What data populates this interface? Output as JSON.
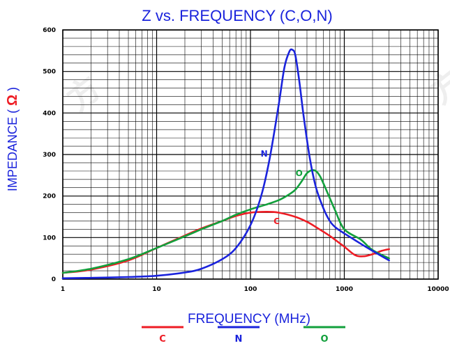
{
  "chart_data": {
    "type": "line",
    "title": "Z vs. FREQUENCY (C,O,N)",
    "xlabel": "FREQUENCY (MHz)",
    "ylabel": "IMPEDANCE",
    "ylabel_unit": "Ω",
    "x_scale": "log",
    "xlim": [
      1,
      10000
    ],
    "ylim": [
      0,
      600
    ],
    "grid": true,
    "x_ticks": [
      {
        "value": 1,
        "label": "1"
      },
      {
        "value": 10,
        "label": "10"
      },
      {
        "value": 100,
        "label": "100"
      },
      {
        "value": 1000,
        "label": "1000"
      },
      {
        "value": 10000,
        "label": "10000"
      }
    ],
    "y_ticks": [
      {
        "value": 0,
        "label": "0"
      },
      {
        "value": 100,
        "label": "100"
      },
      {
        "value": 200,
        "label": "200"
      },
      {
        "value": 300,
        "label": "300"
      },
      {
        "value": 400,
        "label": "400"
      },
      {
        "value": 500,
        "label": "500"
      },
      {
        "value": 600,
        "label": "600"
      }
    ],
    "legend_placement": "bottom",
    "series": [
      {
        "name": "C",
        "color": "#ee1c24",
        "x": [
          1,
          2,
          5,
          10,
          20,
          30,
          50,
          70,
          100,
          150,
          200,
          300,
          400,
          500,
          700,
          1000,
          1300,
          1600,
          2000,
          2500,
          3000
        ],
        "y": [
          15,
          23,
          45,
          75,
          105,
          122,
          140,
          152,
          160,
          162,
          160,
          150,
          138,
          125,
          104,
          78,
          58,
          55,
          60,
          68,
          72
        ]
      },
      {
        "name": "N",
        "color": "#1a23dc",
        "x": [
          1,
          2,
          5,
          10,
          20,
          30,
          50,
          70,
          100,
          130,
          160,
          200,
          230,
          260,
          280,
          300,
          330,
          370,
          430,
          500,
          600,
          700,
          800,
          1000,
          1500,
          2000,
          3000
        ],
        "y": [
          2,
          3,
          5,
          8,
          16,
          25,
          48,
          75,
          130,
          200,
          290,
          420,
          510,
          548,
          552,
          540,
          480,
          390,
          290,
          220,
          170,
          140,
          125,
          110,
          85,
          68,
          45
        ]
      },
      {
        "name": "O",
        "color": "#12a03c",
        "x": [
          1,
          2,
          5,
          10,
          20,
          30,
          50,
          70,
          100,
          150,
          200,
          250,
          300,
          350,
          400,
          450,
          500,
          550,
          600,
          700,
          800,
          1000,
          1500,
          2000,
          3000
        ],
        "y": [
          15,
          25,
          48,
          75,
          103,
          120,
          140,
          155,
          168,
          180,
          190,
          202,
          215,
          235,
          255,
          262,
          260,
          248,
          230,
          195,
          165,
          120,
          95,
          70,
          50
        ]
      }
    ],
    "annotations": [
      {
        "text": "N",
        "x": 140,
        "y": 295,
        "color": "#1a23dc"
      },
      {
        "text": "O",
        "x": 330,
        "y": 248,
        "color": "#12a03c"
      },
      {
        "text": "C",
        "x": 190,
        "y": 132,
        "color": "#ee1c24"
      }
    ],
    "colors": {
      "title": "#1a23dc",
      "ylabel": "#1a23dc",
      "unit": "#ee1c24",
      "axis": "#000000",
      "grid": "#000000"
    }
  }
}
